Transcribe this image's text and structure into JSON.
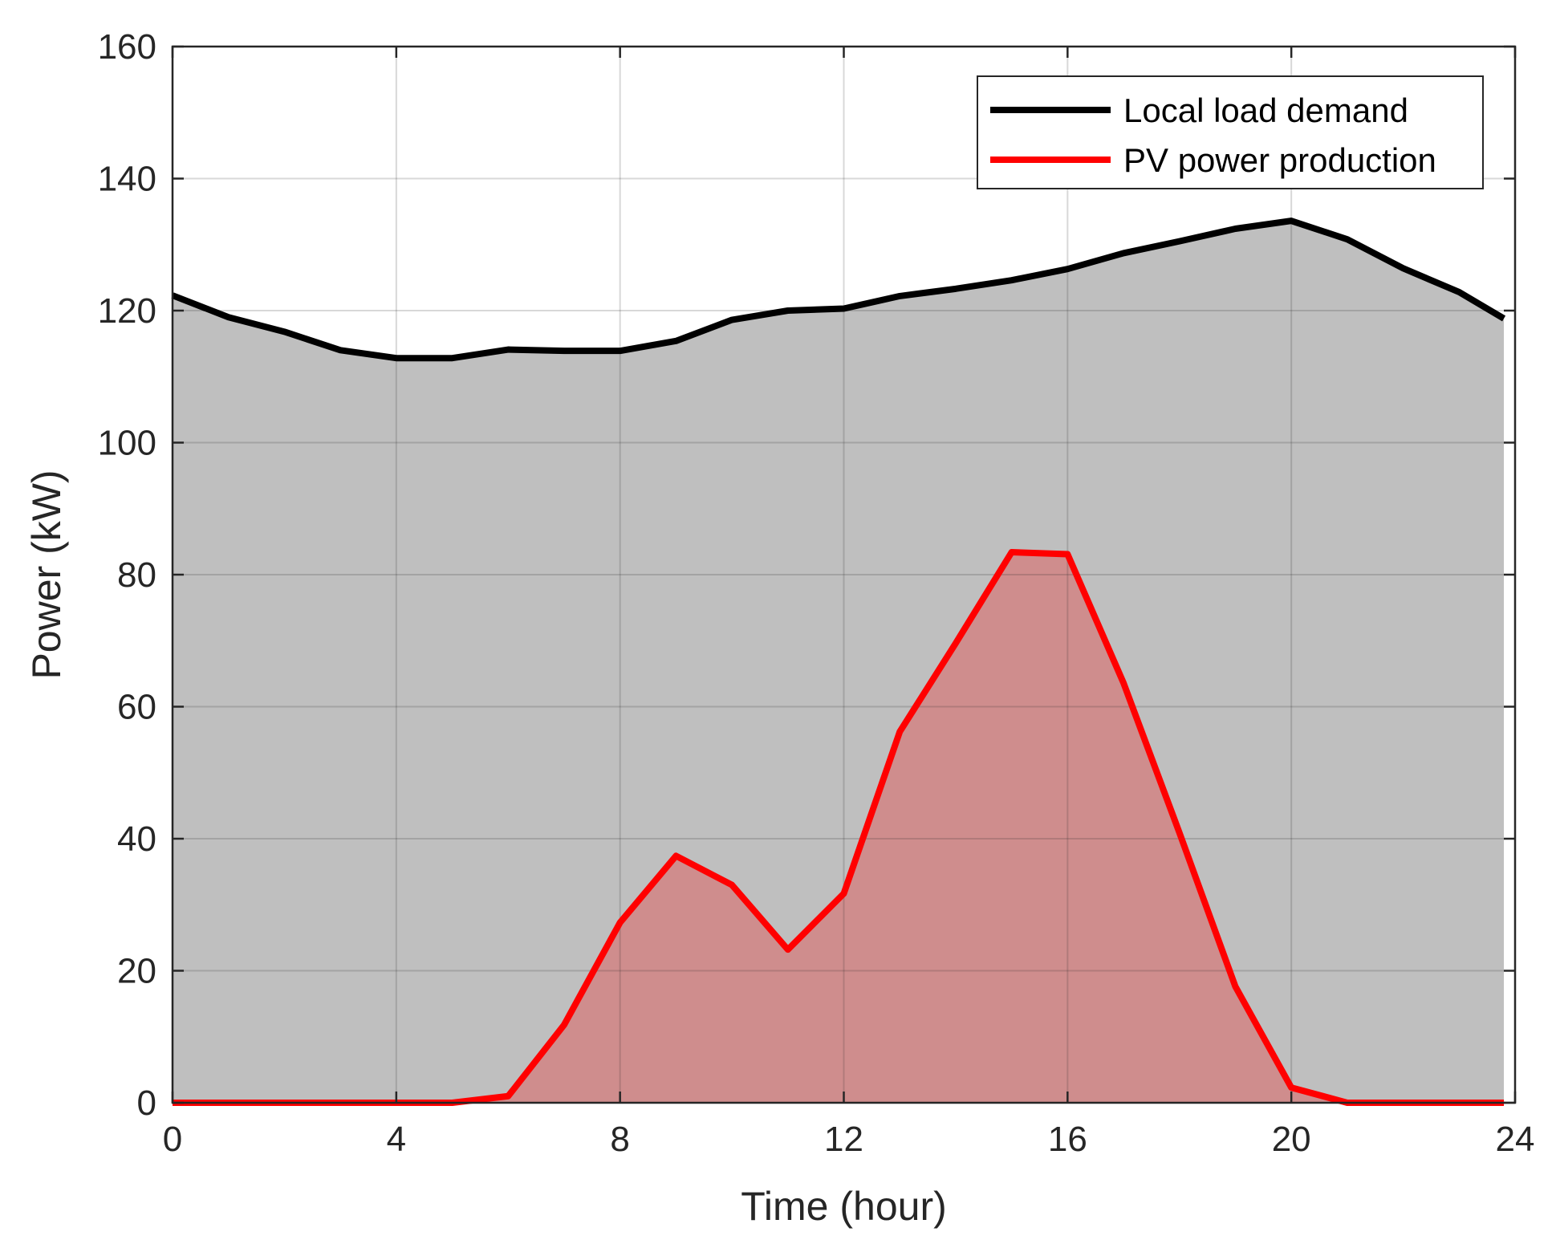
{
  "chart_data": {
    "type": "area",
    "xlabel": "Time (hour)",
    "ylabel": "Power (kW)",
    "xlim": [
      0,
      24
    ],
    "ylim": [
      0,
      160
    ],
    "xticks": [
      0,
      4,
      8,
      12,
      16,
      20,
      24
    ],
    "yticks": [
      0,
      20,
      40,
      60,
      80,
      100,
      120,
      140,
      160
    ],
    "grid": true,
    "legend_position": "top-right",
    "x": [
      0,
      1,
      2,
      3,
      4,
      5,
      6,
      7,
      8,
      9,
      10,
      11,
      12,
      13,
      14,
      15,
      16,
      17,
      18,
      19,
      20,
      21,
      22,
      23,
      23.8
    ],
    "series": [
      {
        "name": "Local load demand",
        "color": "#000000",
        "fill": "#bfbfbf",
        "values": [
          122.3,
          119.0,
          116.8,
          114.0,
          112.8,
          112.8,
          114.1,
          113.9,
          113.9,
          115.4,
          118.6,
          120.0,
          120.3,
          122.2,
          123.3,
          124.6,
          126.3,
          128.7,
          130.5,
          132.4,
          133.6,
          130.8,
          126.4,
          122.8,
          118.8
        ]
      },
      {
        "name": "PV power production",
        "color": "#ff0000",
        "fill": "#cf8d8d",
        "values": [
          0,
          0,
          0,
          0,
          0,
          0,
          1.0,
          11.8,
          27.3,
          37.4,
          33.0,
          23.2,
          31.7,
          56.2,
          69.6,
          83.4,
          83.1,
          63.6,
          40.9,
          17.6,
          2.3,
          0,
          0,
          0,
          0
        ]
      }
    ]
  }
}
